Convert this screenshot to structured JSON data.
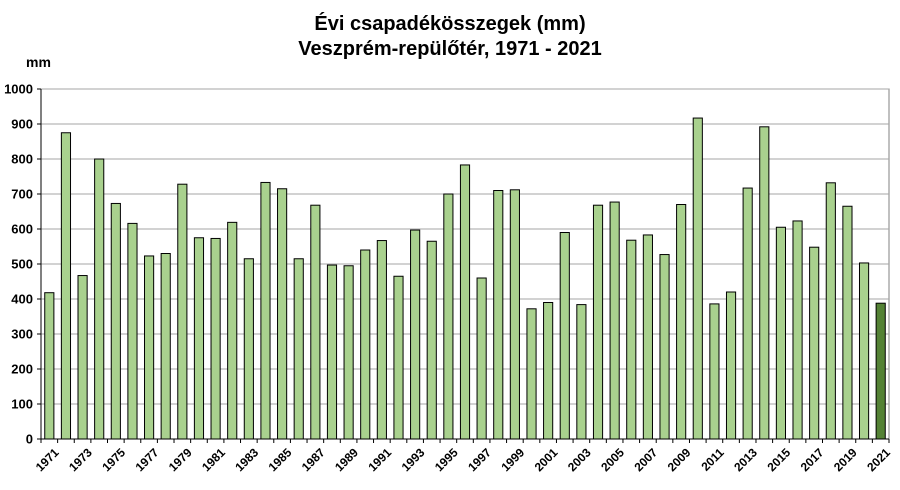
{
  "chart_data": {
    "type": "bar",
    "title": "Évi csapadékösszegek (mm)",
    "subtitle": "Veszprém-repülőtér, 1971 - 2021",
    "ylabel": "mm",
    "xlabel": "",
    "ylim": [
      0,
      1000
    ],
    "yticks": [
      0,
      100,
      200,
      300,
      400,
      500,
      600,
      700,
      800,
      900,
      1000
    ],
    "grid": true,
    "legend": "none",
    "colors": {
      "bar_fill": "#a9d18e",
      "highlight_fill": "#548235",
      "bar_stroke": "#000000",
      "grid": "#a6a6a6"
    },
    "highlight_category": "2021",
    "categories": [
      "1971",
      "1972",
      "1973",
      "1974",
      "1975",
      "1976",
      "1977",
      "1978",
      "1979",
      "1980",
      "1981",
      "1982",
      "1983",
      "1984",
      "1985",
      "1986",
      "1987",
      "1988",
      "1989",
      "1990",
      "1991",
      "1992",
      "1993",
      "1994",
      "1995",
      "1996",
      "1997",
      "1998",
      "1999",
      "2000",
      "2001",
      "2002",
      "2003",
      "2004",
      "2005",
      "2006",
      "2007",
      "2008",
      "2009",
      "2010",
      "2011",
      "2012",
      "2013",
      "2014",
      "2015",
      "2016",
      "2017",
      "2018",
      "2019",
      "2020",
      "2021"
    ],
    "tick_labels": [
      "1971",
      "1973",
      "1975",
      "1977",
      "1979",
      "1981",
      "1983",
      "1985",
      "1987",
      "1989",
      "1991",
      "1993",
      "1995",
      "1997",
      "1999",
      "2001",
      "2003",
      "2005",
      "2007",
      "2009",
      "2011",
      "2013",
      "2015",
      "2017",
      "2019",
      "2021"
    ],
    "values": [
      418,
      875,
      467,
      800,
      673,
      616,
      523,
      530,
      728,
      575,
      573,
      619,
      515,
      733,
      715,
      515,
      668,
      497,
      495,
      540,
      567,
      465,
      597,
      565,
      700,
      783,
      460,
      710,
      712,
      372,
      390,
      590,
      384,
      668,
      677,
      568,
      583,
      527,
      670,
      917,
      386,
      420,
      717,
      892,
      605,
      623,
      548,
      732,
      665,
      503,
      388
    ]
  }
}
